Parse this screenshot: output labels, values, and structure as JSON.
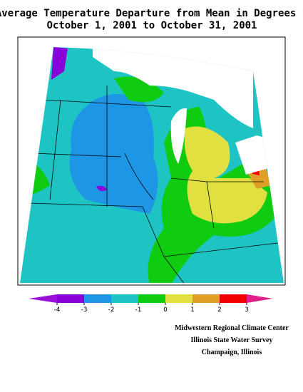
{
  "header": {
    "title_lines": [
      "Average Temperature Departure from Mean in Degrees F",
      "October 1, 2001 to October 31, 2001"
    ]
  },
  "legend": {
    "ticks": [
      -4,
      -3,
      -2,
      -1,
      0,
      1,
      2,
      3
    ],
    "colors": [
      "#9a10d8",
      "#8a00d8",
      "#1e96e6",
      "#1ec4c4",
      "#10cc10",
      "#e0e040",
      "#e0a028",
      "#f00000",
      "#e0208a"
    ]
  },
  "credits": [
    "Midwestern Regional Climate Center",
    "Illinois State Water Survey",
    "Champaign, Illinois"
  ]
}
